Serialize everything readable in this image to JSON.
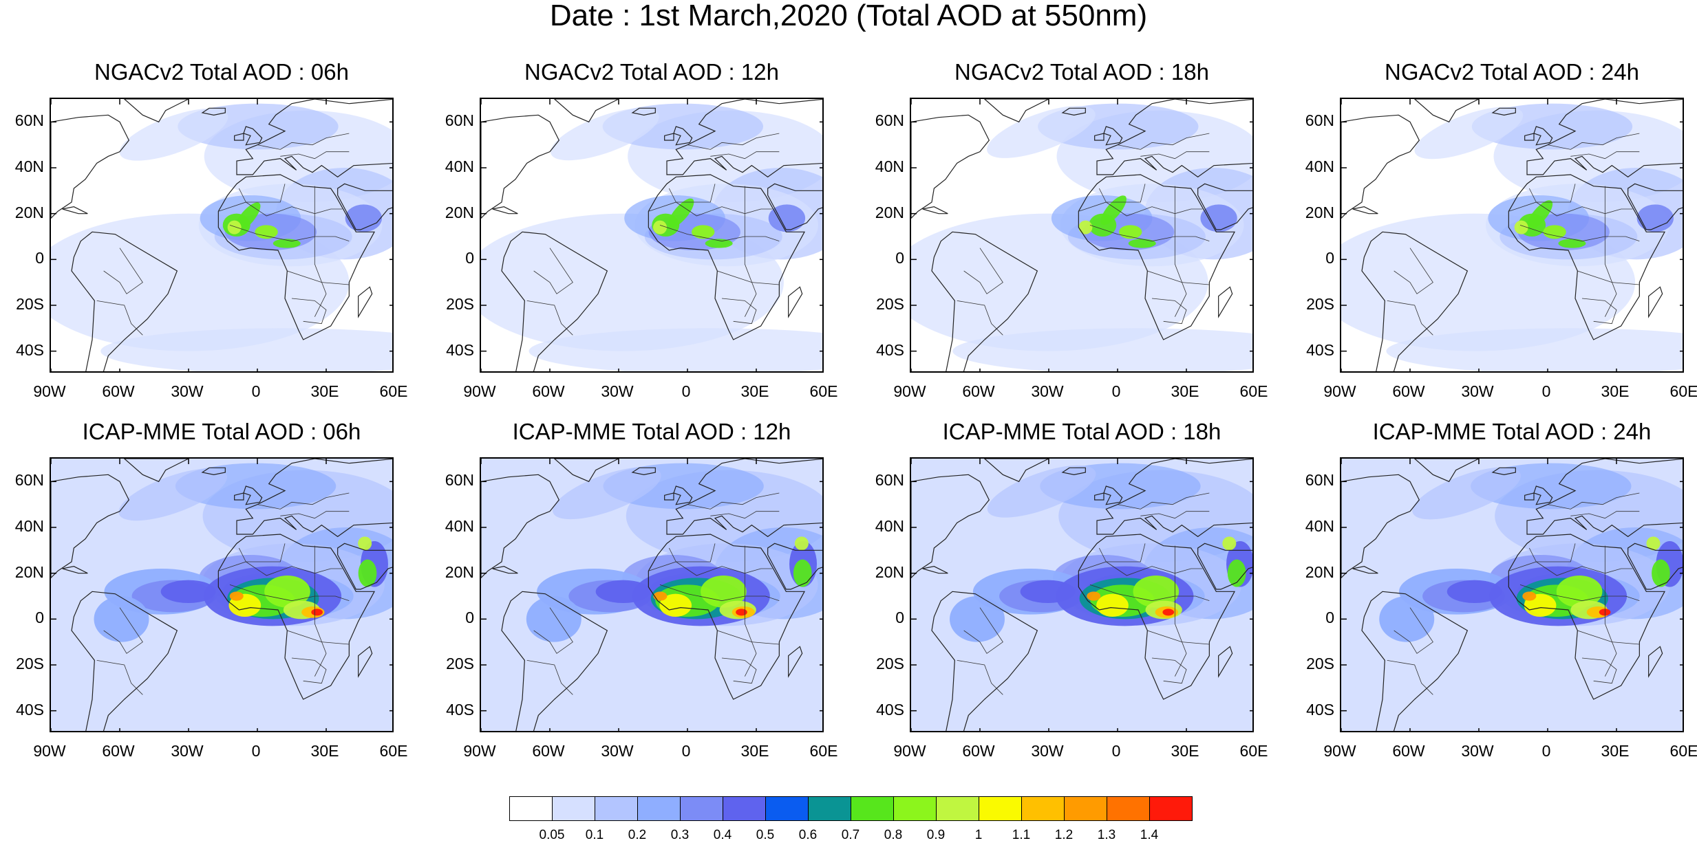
{
  "title": "Date : 1st March,2020 (Total AOD at 550nm)",
  "panels": [
    {
      "title": "NGACv2 Total AOD : 06h",
      "model": "ngac"
    },
    {
      "title": "NGACv2 Total AOD : 12h",
      "model": "ngac"
    },
    {
      "title": "NGACv2 Total AOD : 18h",
      "model": "ngac"
    },
    {
      "title": "NGACv2 Total AOD : 24h",
      "model": "ngac"
    },
    {
      "title": "ICAP-MME Total AOD : 06h",
      "model": "icap"
    },
    {
      "title": "ICAP-MME Total AOD : 12h",
      "model": "icap"
    },
    {
      "title": "ICAP-MME Total AOD : 18h",
      "model": "icap"
    },
    {
      "title": "ICAP-MME Total AOD : 24h",
      "model": "icap"
    }
  ],
  "lat_labels": [
    "60N",
    "40N",
    "20N",
    "0",
    "20S",
    "40S"
  ],
  "lon_labels": [
    "90W",
    "60W",
    "30W",
    "0",
    "30E",
    "60E"
  ],
  "colorbar": {
    "colors": [
      "#ffffff",
      "#d6e0ff",
      "#b3c5ff",
      "#8faeff",
      "#7c8cf6",
      "#5f63ee",
      "#0a5cf0",
      "#0a9494",
      "#57e61c",
      "#8cf51c",
      "#c0f640",
      "#fafa00",
      "#ffc000",
      "#ff9b00",
      "#ff7200",
      "#ff1a0a"
    ],
    "labels": [
      "0.05",
      "0.1",
      "0.2",
      "0.3",
      "0.4",
      "0.5",
      "0.6",
      "0.7",
      "0.8",
      "0.9",
      "1",
      "1.1",
      "1.2",
      "1.3",
      "1.4"
    ]
  }
}
